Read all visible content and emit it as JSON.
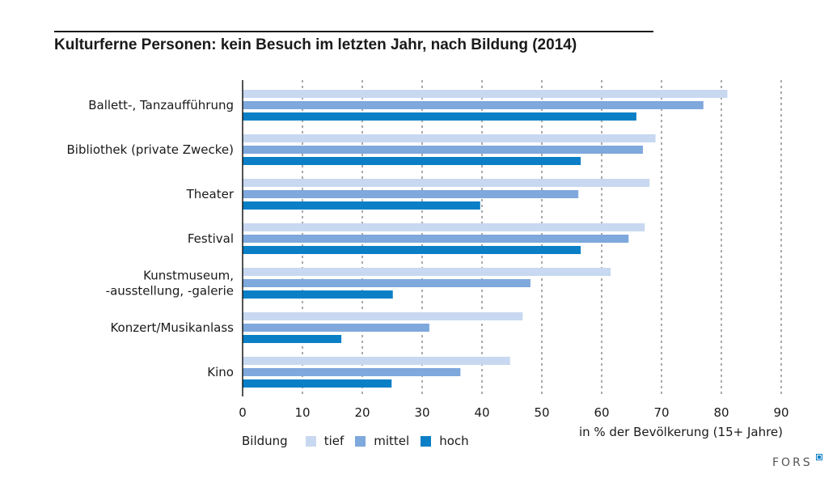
{
  "chart_data": {
    "type": "bar",
    "orientation": "horizontal",
    "title": "Kulturferne Personen: kein Besuch im letzten Jahr, nach Bildung (2014)",
    "xlabel": "in % der Bevölkerung (15+ Jahre)",
    "ylabel": "",
    "xlim": [
      0,
      90
    ],
    "xticks": [
      0,
      10,
      20,
      30,
      40,
      50,
      60,
      70,
      80,
      90
    ],
    "grid": true,
    "categories": [
      [
        "Ballett-, Tanzaufführung"
      ],
      [
        "Bibliothek (private Zwecke)"
      ],
      [
        "Theater"
      ],
      [
        "Festival"
      ],
      [
        "Kunstmuseum,",
        "-ausstellung, -galerie"
      ],
      [
        "Konzert/Musikanlass"
      ],
      [
        "Kino"
      ]
    ],
    "legend_title": "Bildung",
    "legend_position": "bottom-left",
    "series": [
      {
        "name": "tief",
        "color": "#c8d8f0",
        "values": [
          81.0,
          69.0,
          68.0,
          67.2,
          61.5,
          46.8,
          44.7
        ]
      },
      {
        "name": "mittel",
        "color": "#7fa8dc",
        "values": [
          77.0,
          66.9,
          56.1,
          64.5,
          48.1,
          31.2,
          36.4
        ]
      },
      {
        "name": "hoch",
        "color": "#0a7fc6",
        "values": [
          65.8,
          56.5,
          39.7,
          56.5,
          25.1,
          16.5,
          24.9
        ]
      }
    ]
  },
  "logo": {
    "text": "FORS"
  }
}
